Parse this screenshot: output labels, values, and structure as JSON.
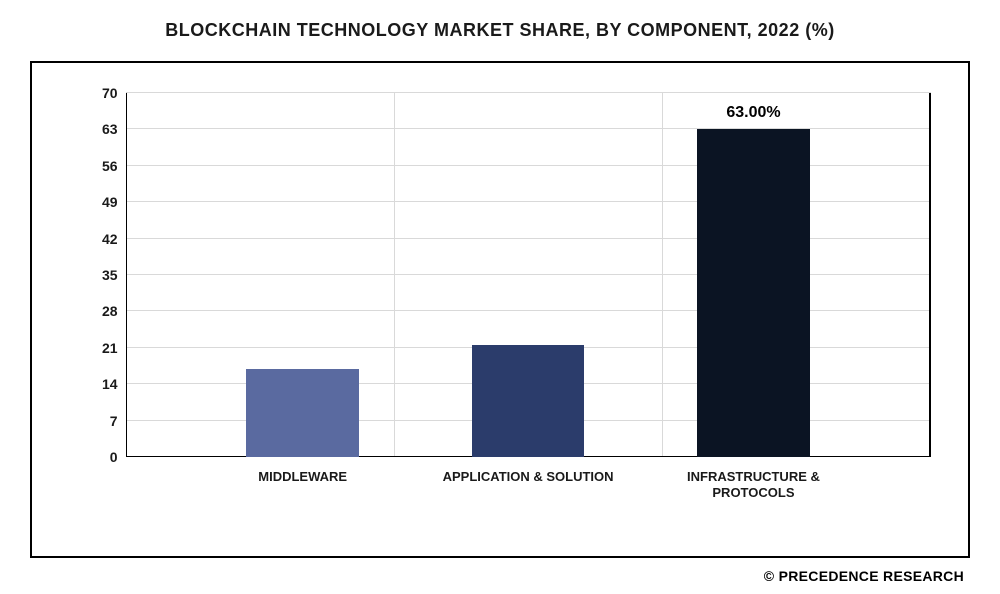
{
  "title": "BLOCKCHAIN TECHNOLOGY MARKET SHARE, BY COMPONENT, 2022 (%)",
  "footer": "© PRECEDENCE RESEARCH",
  "chart": {
    "type": "bar",
    "background_color": "#ffffff",
    "grid_color": "#d9d9d9",
    "axis_color": "#000000",
    "title_fontsize": 18,
    "title_color": "#1a1a1a",
    "label_fontsize": 13,
    "label_color": "#1a1a1a",
    "ylim": [
      0,
      70
    ],
    "yticks": [
      0,
      7,
      14,
      21,
      28,
      35,
      42,
      49,
      56,
      63,
      70
    ],
    "bar_width_pct": 14,
    "categories": [
      "MIDDLEWARE",
      "APPLICATION & SOLUTION",
      "INFRASTRUCTURE & PROTOCOLS"
    ],
    "values": [
      17,
      21.5,
      63
    ],
    "bar_colors": [
      "#5a6aa0",
      "#2b3c6b",
      "#0b1423"
    ],
    "data_labels": [
      null,
      null,
      "63.00%"
    ],
    "x_positions_pct": [
      22,
      50,
      78
    ]
  }
}
